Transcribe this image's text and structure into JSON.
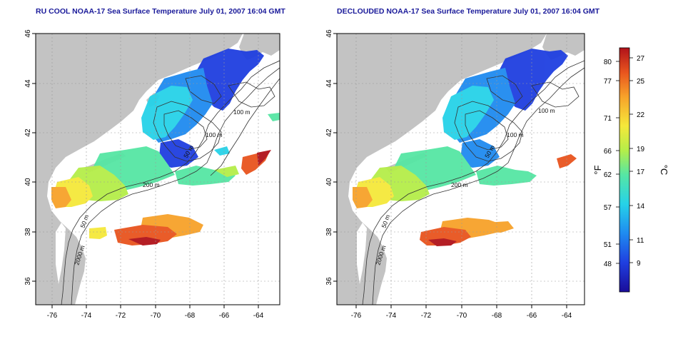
{
  "maps": [
    {
      "title": "RU COOL NOAA-17 Sea Surface Temperature July 01, 2007 16:04 GMT",
      "variant": "cool"
    },
    {
      "title": "DECLOUDED NOAA-17 Sea Surface Temperature July 01, 2007 16:04 GMT",
      "variant": "declouded"
    }
  ],
  "axes": {
    "lat_ticks": [
      "46",
      "44",
      "42",
      "40",
      "38",
      "36"
    ],
    "lon_ticks": [
      "-76",
      "-74",
      "-72",
      "-70",
      "-68",
      "-66",
      "-64"
    ]
  },
  "contour_labels": {
    "left": [
      "100 m",
      "100 m",
      "50 m",
      "200 m",
      "50 m",
      "2000 m"
    ],
    "right": [
      "100 m",
      "100 m",
      "50 m",
      "200 m",
      "50 m",
      "2000 m"
    ]
  },
  "colorbar": {
    "fahrenheit_ticks": [
      "80",
      "77",
      "71",
      "66",
      "62",
      "57",
      "51",
      "48"
    ],
    "celsius_ticks": [
      "27",
      "25",
      "22",
      "19",
      "17",
      "14",
      "11",
      "9"
    ],
    "fahrenheit_label": "°F",
    "celsius_label": "°C"
  },
  "colors": {
    "land": "#c3c3c3",
    "cloud": "#ffffff",
    "title": "#1a1a9a",
    "scale": [
      "#1a0d99",
      "#1f3fe0",
      "#1f8bf0",
      "#26d2e8",
      "#56e6a4",
      "#b5ee49",
      "#f5e83a",
      "#f7a22a",
      "#e8541e",
      "#b0121a"
    ]
  }
}
